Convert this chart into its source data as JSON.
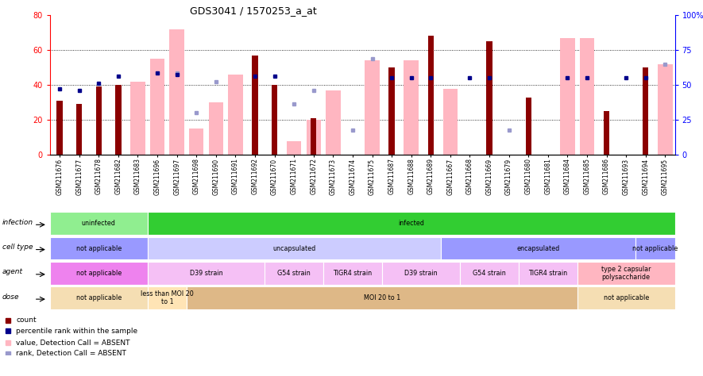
{
  "title": "GDS3041 / 1570253_a_at",
  "samples": [
    "GSM211676",
    "GSM211677",
    "GSM211678",
    "GSM211682",
    "GSM211683",
    "GSM211696",
    "GSM211697",
    "GSM211698",
    "GSM211690",
    "GSM211691",
    "GSM211692",
    "GSM211670",
    "GSM211671",
    "GSM211672",
    "GSM211673",
    "GSM211674",
    "GSM211675",
    "GSM211687",
    "GSM211688",
    "GSM211689",
    "GSM211667",
    "GSM211668",
    "GSM211669",
    "GSM211679",
    "GSM211680",
    "GSM211681",
    "GSM211684",
    "GSM211685",
    "GSM211686",
    "GSM211693",
    "GSM211694",
    "GSM211695"
  ],
  "count": [
    31,
    29,
    39,
    40,
    null,
    null,
    null,
    null,
    null,
    null,
    57,
    40,
    null,
    21,
    null,
    null,
    null,
    50,
    null,
    68,
    null,
    null,
    65,
    null,
    33,
    null,
    null,
    null,
    25,
    null,
    50,
    null
  ],
  "value_absent": [
    null,
    null,
    null,
    null,
    42,
    55,
    72,
    15,
    30,
    46,
    null,
    null,
    8,
    20,
    37,
    null,
    54,
    null,
    54,
    null,
    38,
    null,
    null,
    null,
    null,
    null,
    67,
    67,
    null,
    null,
    null,
    52
  ],
  "percentile": [
    38,
    37,
    41,
    45,
    null,
    47,
    46,
    null,
    null,
    null,
    45,
    45,
    null,
    null,
    null,
    null,
    null,
    44,
    44,
    44,
    null,
    44,
    44,
    null,
    null,
    null,
    44,
    44,
    null,
    44,
    44,
    null
  ],
  "rank_absent": [
    null,
    null,
    null,
    null,
    null,
    null,
    47,
    24,
    42,
    null,
    null,
    null,
    29,
    37,
    null,
    14,
    55,
    null,
    null,
    null,
    null,
    null,
    null,
    14,
    null,
    null,
    null,
    null,
    null,
    null,
    null,
    52
  ],
  "ylim_left": [
    0,
    80
  ],
  "ylim_right": [
    0,
    100
  ],
  "yticks_left": [
    0,
    20,
    40,
    60,
    80
  ],
  "yticks_right": [
    0,
    25,
    50,
    75,
    100
  ],
  "bar_color_count": "#8B0000",
  "bar_color_absent": "#FFB6C1",
  "dot_color_percentile": "#00008B",
  "dot_color_rank_absent": "#9999CC",
  "annotation_rows": [
    {
      "label": "infection",
      "segments": [
        {
          "start": 0,
          "end": 4,
          "text": "uninfected",
          "color": "#90EE90"
        },
        {
          "start": 5,
          "end": 31,
          "text": "infected",
          "color": "#32CD32"
        }
      ]
    },
    {
      "label": "cell type",
      "segments": [
        {
          "start": 0,
          "end": 4,
          "text": "not applicable",
          "color": "#9999FF"
        },
        {
          "start": 5,
          "end": 19,
          "text": "uncapsulated",
          "color": "#CCCCFF"
        },
        {
          "start": 20,
          "end": 29,
          "text": "encapsulated",
          "color": "#9999FF"
        },
        {
          "start": 30,
          "end": 31,
          "text": "not applicable",
          "color": "#9999FF"
        }
      ]
    },
    {
      "label": "agent",
      "segments": [
        {
          "start": 0,
          "end": 4,
          "text": "not applicable",
          "color": "#EE82EE"
        },
        {
          "start": 5,
          "end": 10,
          "text": "D39 strain",
          "color": "#F5C0F5"
        },
        {
          "start": 11,
          "end": 13,
          "text": "G54 strain",
          "color": "#F5C0F5"
        },
        {
          "start": 14,
          "end": 16,
          "text": "TIGR4 strain",
          "color": "#F5C0F5"
        },
        {
          "start": 17,
          "end": 20,
          "text": "D39 strain",
          "color": "#F5C0F5"
        },
        {
          "start": 21,
          "end": 23,
          "text": "G54 strain",
          "color": "#F5C0F5"
        },
        {
          "start": 24,
          "end": 26,
          "text": "TIGR4 strain",
          "color": "#F5C0F5"
        },
        {
          "start": 27,
          "end": 31,
          "text": "type 2 capsular\npolysaccharide",
          "color": "#FFB6C1"
        }
      ]
    },
    {
      "label": "dose",
      "segments": [
        {
          "start": 0,
          "end": 4,
          "text": "not applicable",
          "color": "#F5DEB3"
        },
        {
          "start": 5,
          "end": 6,
          "text": "less than MOI 20\nto 1",
          "color": "#FFE4B5"
        },
        {
          "start": 7,
          "end": 26,
          "text": "MOI 20 to 1",
          "color": "#DEB887"
        },
        {
          "start": 27,
          "end": 31,
          "text": "not applicable",
          "color": "#F5DEB3"
        }
      ]
    }
  ],
  "legend_labels": [
    "count",
    "percentile rank within the sample",
    "value, Detection Call = ABSENT",
    "rank, Detection Call = ABSENT"
  ],
  "legend_colors": [
    "#8B0000",
    "#00008B",
    "#FFB6C1",
    "#9999CC"
  ]
}
